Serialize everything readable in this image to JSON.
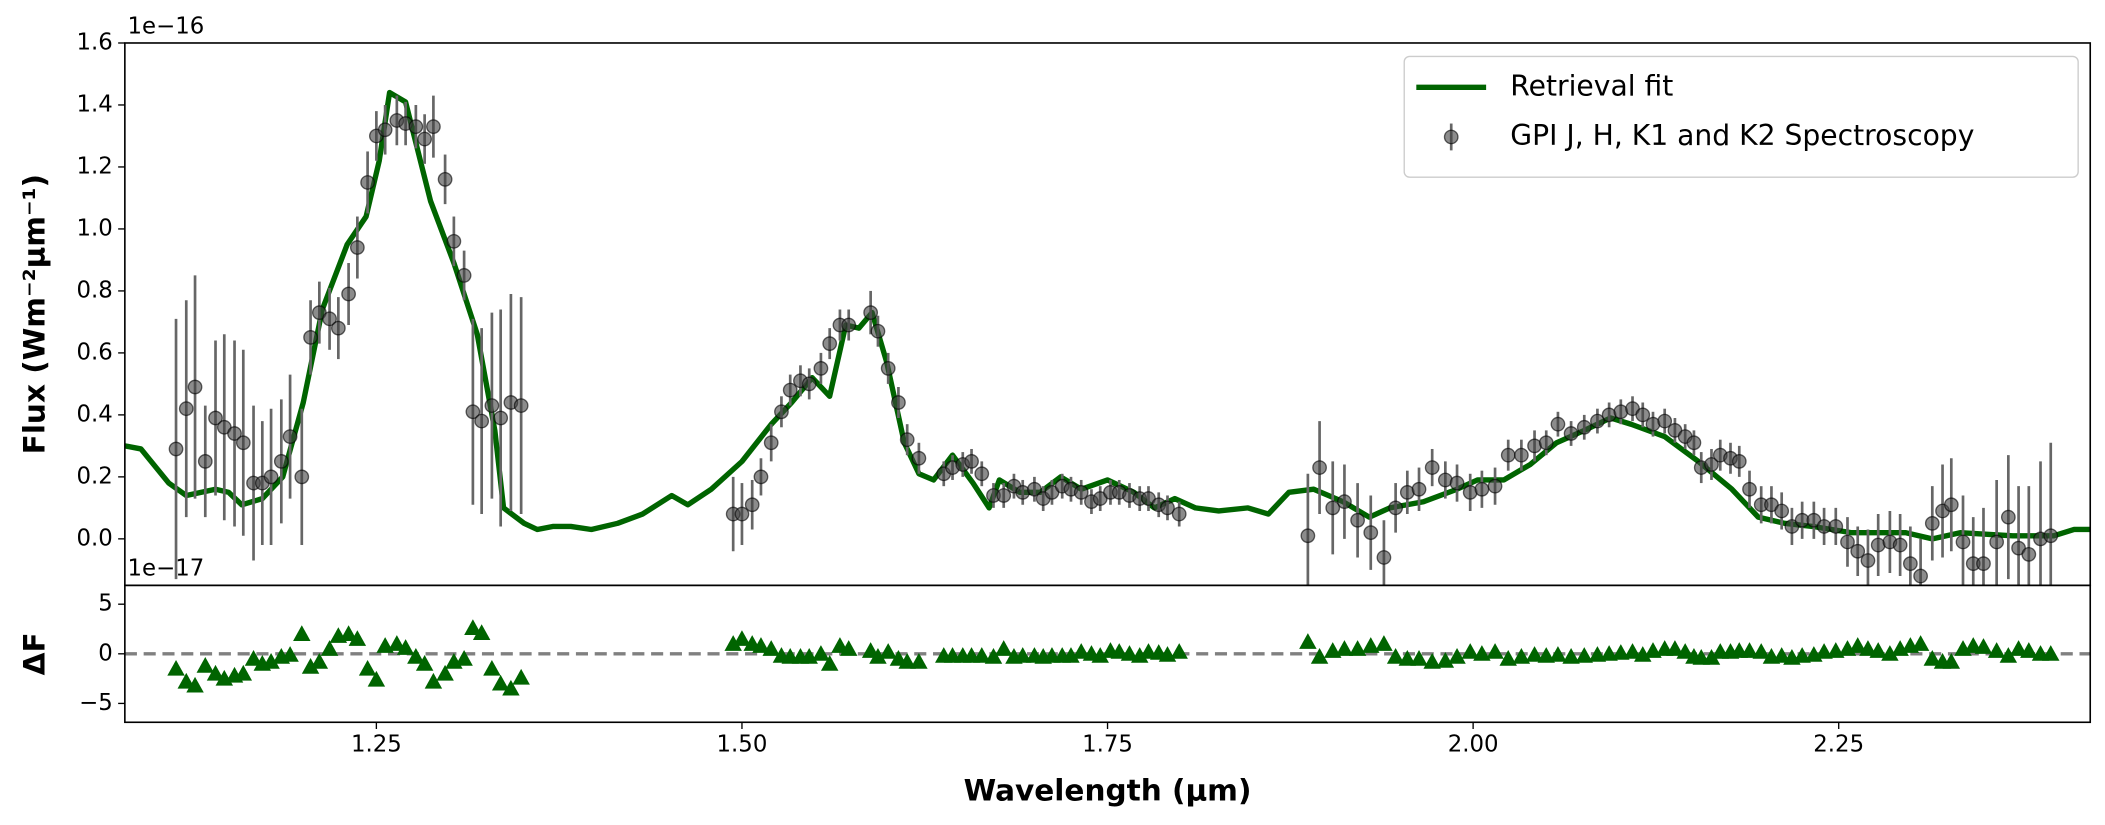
{
  "chart_data": [
    {
      "type": "line",
      "offset_text": "1e−16",
      "ylabel": "Flux (Wm⁻²µm⁻¹)",
      "legend": "upper right",
      "xlim": [
        1.078,
        2.422
      ],
      "ylim": [
        -0.15,
        1.6
      ],
      "yticks": [
        {
          "value": 0,
          "label": "0.0"
        },
        0.2,
        0.4,
        0.6,
        0.8,
        {
          "value": 1,
          "label": "1.0"
        },
        1.2,
        1.4,
        1.6
      ],
      "series": [
        {
          "name": "Retrieval fit",
          "type": "line",
          "color": "#006400",
          "x": [
            1.078,
            1.089,
            1.108,
            1.12,
            1.14,
            1.149,
            1.158,
            1.172,
            1.186,
            1.2,
            1.213,
            1.23,
            1.243,
            1.252,
            1.259,
            1.27,
            1.287,
            1.303,
            1.319,
            1.331,
            1.337,
            1.351,
            1.36,
            1.371,
            1.383,
            1.397,
            1.415,
            1.432,
            1.452,
            1.463,
            1.479,
            1.5,
            1.52,
            1.534,
            1.548,
            1.56,
            1.571,
            1.58,
            1.589,
            1.599,
            1.611,
            1.621,
            1.631,
            1.644,
            1.658,
            1.669,
            1.676,
            1.69,
            1.704,
            1.718,
            1.732,
            1.75,
            1.768,
            1.782,
            1.796,
            1.81,
            1.826,
            1.846,
            1.86,
            1.874,
            1.891,
            1.911,
            1.929,
            1.943,
            1.966,
            1.989,
            2.003,
            2.021,
            2.039,
            2.057,
            2.076,
            2.094,
            2.108,
            2.131,
            2.154,
            2.177,
            2.195,
            2.213,
            2.232,
            2.259,
            2.296,
            2.314,
            2.333,
            2.369,
            2.397,
            2.411,
            2.422
          ],
          "values": [
            0.3,
            0.29,
            0.18,
            0.14,
            0.16,
            0.15,
            0.11,
            0.13,
            0.2,
            0.44,
            0.74,
            0.95,
            1.04,
            1.22,
            1.44,
            1.41,
            1.09,
            0.89,
            0.66,
            0.35,
            0.1,
            0.05,
            0.03,
            0.04,
            0.04,
            0.03,
            0.05,
            0.08,
            0.14,
            0.11,
            0.16,
            0.25,
            0.37,
            0.44,
            0.52,
            0.46,
            0.69,
            0.68,
            0.73,
            0.57,
            0.31,
            0.21,
            0.19,
            0.27,
            0.18,
            0.1,
            0.19,
            0.15,
            0.15,
            0.2,
            0.16,
            0.19,
            0.15,
            0.1,
            0.13,
            0.1,
            0.09,
            0.1,
            0.08,
            0.15,
            0.16,
            0.12,
            0.07,
            0.1,
            0.12,
            0.16,
            0.19,
            0.19,
            0.24,
            0.31,
            0.35,
            0.39,
            0.37,
            0.33,
            0.25,
            0.16,
            0.07,
            0.05,
            0.04,
            0.02,
            0.02,
            0.0,
            0.02,
            0.01,
            0.01,
            0.03,
            0.03
          ]
        },
        {
          "name": "GPI J, H, K1 and K2 Spectroscopy",
          "type": "errorbar",
          "color": "#404040",
          "x": [
            1.113,
            1.12,
            1.126,
            1.133,
            1.14,
            1.146,
            1.153,
            1.159,
            1.166,
            1.172,
            1.178,
            1.185,
            1.191,
            1.199,
            1.205,
            1.211,
            1.218,
            1.224,
            1.231,
            1.237,
            1.244,
            1.25,
            1.256,
            1.264,
            1.27,
            1.277,
            1.283,
            1.289,
            1.297,
            1.303,
            1.31,
            1.316,
            1.322,
            1.329,
            1.335,
            1.342,
            1.349,
            1.494,
            1.5,
            1.507,
            1.513,
            1.52,
            1.527,
            1.533,
            1.54,
            1.546,
            1.554,
            1.56,
            1.567,
            1.573,
            1.588,
            1.593,
            1.6,
            1.607,
            1.613,
            1.621,
            1.638,
            1.644,
            1.651,
            1.657,
            1.664,
            1.672,
            1.679,
            1.686,
            1.692,
            1.7,
            1.706,
            1.712,
            1.719,
            1.725,
            1.732,
            1.739,
            1.745,
            1.752,
            1.758,
            1.765,
            1.772,
            1.778,
            1.785,
            1.791,
            1.799,
            1.887,
            1.895,
            1.904,
            1.912,
            1.921,
            1.93,
            1.939,
            1.947,
            1.955,
            1.963,
            1.972,
            1.981,
            1.989,
            1.998,
            2.006,
            2.015,
            2.024,
            2.033,
            2.042,
            2.05,
            2.058,
            2.067,
            2.076,
            2.085,
            2.093,
            2.101,
            2.109,
            2.116,
            2.123,
            2.131,
            2.138,
            2.145,
            2.151,
            2.156,
            2.163,
            2.169,
            2.176,
            2.182,
            2.189,
            2.197,
            2.204,
            2.211,
            2.218,
            2.225,
            2.233,
            2.24,
            2.248,
            2.256,
            2.263,
            2.27,
            2.277,
            2.285,
            2.292,
            2.299,
            2.306,
            2.314,
            2.321,
            2.327,
            2.335,
            2.342,
            2.349,
            2.358,
            2.366,
            2.373,
            2.38,
            2.388,
            2.395
          ],
          "values": [
            0.29,
            0.42,
            0.49,
            0.25,
            0.39,
            0.36,
            0.34,
            0.31,
            0.18,
            0.18,
            0.2,
            0.25,
            0.33,
            0.2,
            0.65,
            0.73,
            0.71,
            0.68,
            0.79,
            0.94,
            1.15,
            1.3,
            1.32,
            1.35,
            1.34,
            1.33,
            1.29,
            1.33,
            1.16,
            0.96,
            0.85,
            0.41,
            0.38,
            0.43,
            0.39,
            0.44,
            0.43,
            0.08,
            0.08,
            0.11,
            0.2,
            0.31,
            0.41,
            0.48,
            0.51,
            0.5,
            0.55,
            0.63,
            0.69,
            0.69,
            0.73,
            0.67,
            0.55,
            0.44,
            0.32,
            0.26,
            0.21,
            0.23,
            0.24,
            0.25,
            0.21,
            0.14,
            0.14,
            0.17,
            0.15,
            0.16,
            0.13,
            0.15,
            0.17,
            0.16,
            0.15,
            0.12,
            0.13,
            0.15,
            0.15,
            0.14,
            0.13,
            0.13,
            0.11,
            0.1,
            0.08,
            0.01,
            0.23,
            0.1,
            0.12,
            0.06,
            0.02,
            -0.06,
            0.1,
            0.15,
            0.16,
            0.23,
            0.19,
            0.18,
            0.15,
            0.16,
            0.17,
            0.27,
            0.27,
            0.3,
            0.31,
            0.37,
            0.34,
            0.36,
            0.38,
            0.4,
            0.41,
            0.42,
            0.4,
            0.37,
            0.38,
            0.35,
            0.33,
            0.31,
            0.23,
            0.24,
            0.27,
            0.26,
            0.25,
            0.16,
            0.11,
            0.11,
            0.09,
            0.04,
            0.06,
            0.06,
            0.04,
            0.04,
            -0.01,
            -0.04,
            -0.07,
            -0.02,
            -0.01,
            -0.02,
            -0.08,
            -0.12,
            0.05,
            0.09,
            0.11,
            -0.01,
            -0.08,
            -0.08,
            -0.01,
            0.07,
            -0.03,
            -0.05,
            0.0,
            0.01
          ],
          "errors": [
            0.42,
            0.35,
            0.36,
            0.18,
            0.25,
            0.3,
            0.3,
            0.3,
            0.25,
            0.2,
            0.22,
            0.2,
            0.2,
            0.22,
            0.12,
            0.1,
            0.1,
            0.1,
            0.1,
            0.1,
            0.1,
            0.08,
            0.08,
            0.08,
            0.07,
            0.07,
            0.08,
            0.1,
            0.08,
            0.08,
            0.08,
            0.3,
            0.3,
            0.3,
            0.35,
            0.35,
            0.35,
            0.12,
            0.1,
            0.08,
            0.06,
            0.06,
            0.05,
            0.05,
            0.05,
            0.05,
            0.05,
            0.05,
            0.05,
            0.05,
            0.07,
            0.05,
            0.05,
            0.05,
            0.05,
            0.05,
            0.04,
            0.04,
            0.04,
            0.04,
            0.04,
            0.04,
            0.04,
            0.04,
            0.04,
            0.04,
            0.04,
            0.04,
            0.04,
            0.04,
            0.04,
            0.04,
            0.04,
            0.04,
            0.04,
            0.04,
            0.04,
            0.04,
            0.04,
            0.04,
            0.04,
            0.2,
            0.15,
            0.15,
            0.12,
            0.12,
            0.12,
            0.12,
            0.08,
            0.07,
            0.07,
            0.06,
            0.06,
            0.06,
            0.06,
            0.06,
            0.06,
            0.05,
            0.05,
            0.05,
            0.04,
            0.04,
            0.04,
            0.04,
            0.04,
            0.04,
            0.04,
            0.04,
            0.04,
            0.04,
            0.04,
            0.04,
            0.04,
            0.04,
            0.05,
            0.05,
            0.05,
            0.05,
            0.05,
            0.06,
            0.06,
            0.06,
            0.06,
            0.06,
            0.06,
            0.06,
            0.06,
            0.06,
            0.08,
            0.08,
            0.1,
            0.1,
            0.1,
            0.1,
            0.12,
            0.12,
            0.12,
            0.15,
            0.15,
            0.15,
            0.15,
            0.18,
            0.2,
            0.2,
            0.2,
            0.22,
            0.25,
            0.3
          ]
        }
      ]
    },
    {
      "type": "scatter",
      "offset_text": "1e−17",
      "ylabel": "ΔF",
      "xlabel": "Wavelength (μm)",
      "zero_line": true,
      "xlim": [
        1.078,
        2.422
      ],
      "ylim": [
        -6.9,
        6.9
      ],
      "xticks": [
        {
          "value": 1.25,
          "label": "1.25"
        },
        {
          "value": 1.5,
          "label": "1.50"
        },
        {
          "value": 1.75,
          "label": "1.75"
        },
        {
          "value": 2,
          "label": "2.00"
        },
        {
          "value": 2.25,
          "label": "2.25"
        }
      ],
      "yticks": [
        {
          "value": -5,
          "label": "−5"
        },
        0,
        5
      ],
      "series": [
        {
          "color": "#006400",
          "marker": "triangle",
          "x": [
            1.113,
            1.12,
            1.126,
            1.133,
            1.14,
            1.146,
            1.153,
            1.159,
            1.166,
            1.172,
            1.178,
            1.185,
            1.191,
            1.199,
            1.205,
            1.211,
            1.218,
            1.224,
            1.231,
            1.237,
            1.244,
            1.25,
            1.256,
            1.264,
            1.27,
            1.277,
            1.283,
            1.289,
            1.297,
            1.303,
            1.31,
            1.316,
            1.322,
            1.329,
            1.335,
            1.342,
            1.349,
            1.494,
            1.5,
            1.507,
            1.513,
            1.52,
            1.527,
            1.533,
            1.54,
            1.546,
            1.554,
            1.56,
            1.567,
            1.573,
            1.588,
            1.593,
            1.6,
            1.607,
            1.613,
            1.621,
            1.638,
            1.644,
            1.651,
            1.657,
            1.664,
            1.672,
            1.679,
            1.686,
            1.692,
            1.7,
            1.706,
            1.712,
            1.719,
            1.725,
            1.732,
            1.739,
            1.745,
            1.752,
            1.758,
            1.765,
            1.772,
            1.778,
            1.785,
            1.791,
            1.799,
            1.887,
            1.895,
            1.904,
            1.912,
            1.921,
            1.93,
            1.939,
            1.947,
            1.955,
            1.963,
            1.972,
            1.981,
            1.989,
            1.998,
            2.006,
            2.015,
            2.024,
            2.033,
            2.042,
            2.05,
            2.058,
            2.067,
            2.076,
            2.085,
            2.093,
            2.101,
            2.109,
            2.116,
            2.123,
            2.131,
            2.138,
            2.145,
            2.151,
            2.156,
            2.163,
            2.169,
            2.176,
            2.182,
            2.189,
            2.197,
            2.204,
            2.211,
            2.218,
            2.225,
            2.233,
            2.24,
            2.248,
            2.256,
            2.263,
            2.27,
            2.277,
            2.285,
            2.292,
            2.299,
            2.306,
            2.314,
            2.321,
            2.327,
            2.335,
            2.342,
            2.349,
            2.358,
            2.366,
            2.373,
            2.38,
            2.388,
            2.395
          ],
          "values": [
            -1.5,
            -2.8,
            -3.2,
            -1.2,
            -2.0,
            -2.5,
            -2.2,
            -2.0,
            -0.5,
            -1.0,
            -0.8,
            -0.3,
            -0.1,
            2.0,
            -1.3,
            -0.8,
            0.5,
            1.8,
            2.0,
            1.5,
            -1.5,
            -2.6,
            0.8,
            1.0,
            0.6,
            -0.3,
            -1.0,
            -2.8,
            -2.0,
            -0.8,
            -0.5,
            2.6,
            2.1,
            -1.5,
            -3.0,
            -3.5,
            -2.4,
            1.0,
            1.5,
            1.0,
            0.8,
            0.5,
            -0.2,
            -0.3,
            -0.3,
            -0.3,
            0.0,
            -1.0,
            0.8,
            0.5,
            0.3,
            -0.3,
            0.2,
            -0.5,
            -0.8,
            -0.8,
            -0.2,
            -0.2,
            -0.2,
            -0.2,
            -0.2,
            -0.3,
            0.5,
            -0.3,
            -0.2,
            -0.2,
            -0.3,
            -0.2,
            -0.2,
            -0.2,
            0.2,
            0.0,
            -0.2,
            0.3,
            0.2,
            0.0,
            -0.2,
            0.2,
            0.1,
            -0.1,
            0.2,
            1.2,
            -0.3,
            0.3,
            0.5,
            0.5,
            0.8,
            1.0,
            -0.3,
            -0.5,
            -0.5,
            -0.8,
            -0.7,
            -0.3,
            0.2,
            0.0,
            0.2,
            -0.5,
            -0.3,
            -0.1,
            -0.2,
            -0.1,
            -0.3,
            -0.2,
            -0.1,
            0.0,
            0.1,
            0.2,
            -0.1,
            0.3,
            0.5,
            0.5,
            0.2,
            -0.3,
            -0.4,
            -0.4,
            0.2,
            0.2,
            0.3,
            0.3,
            0.2,
            -0.3,
            -0.2,
            -0.4,
            -0.2,
            -0.1,
            0.2,
            0.3,
            0.5,
            0.8,
            0.5,
            0.3,
            0.0,
            0.5,
            0.8,
            1.0,
            -0.5,
            -0.8,
            -0.8,
            0.5,
            0.8,
            0.7,
            0.3,
            -0.2,
            0.5,
            0.3,
            0.0,
            0.0
          ]
        }
      ]
    }
  ]
}
